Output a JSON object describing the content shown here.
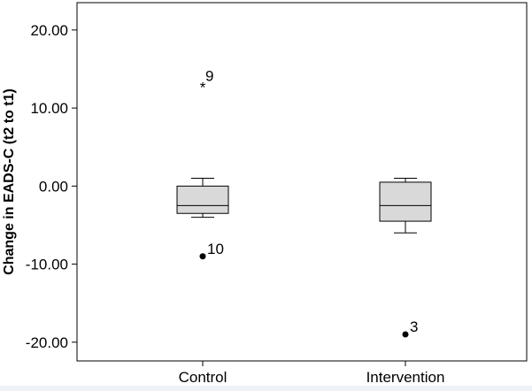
{
  "chart_data": {
    "type": "boxplot",
    "ylabel": "Change in EADS-C (t2 to t1)",
    "xlabel": "",
    "ylim": [
      -22.4,
      23.5
    ],
    "yticks": [
      20,
      10,
      0,
      -10,
      -20
    ],
    "ytick_labels": [
      "20.00",
      "10.00",
      "0.00",
      "-10.00",
      "-20.00"
    ],
    "grid": false,
    "legend": "none",
    "box_fill": "#d9d9d9",
    "stroke_color": "#000000",
    "categories": [
      "Control",
      "Intervention"
    ],
    "boxes": [
      {
        "category": "Control",
        "whisker_low": -4.0,
        "q1": -3.5,
        "median": -2.5,
        "q3": 0.0,
        "whisker_high": 1.0,
        "outliers": [
          {
            "value": 13.0,
            "label": "9",
            "marker": "star"
          },
          {
            "value": -9.0,
            "label": "10",
            "marker": "dot"
          }
        ]
      },
      {
        "category": "Intervention",
        "whisker_low": -6.0,
        "q1": -4.5,
        "median": -2.5,
        "q3": 0.5,
        "whisker_high": 1.0,
        "outliers": [
          {
            "value": -19.0,
            "label": "3",
            "marker": "dot"
          }
        ]
      }
    ]
  }
}
